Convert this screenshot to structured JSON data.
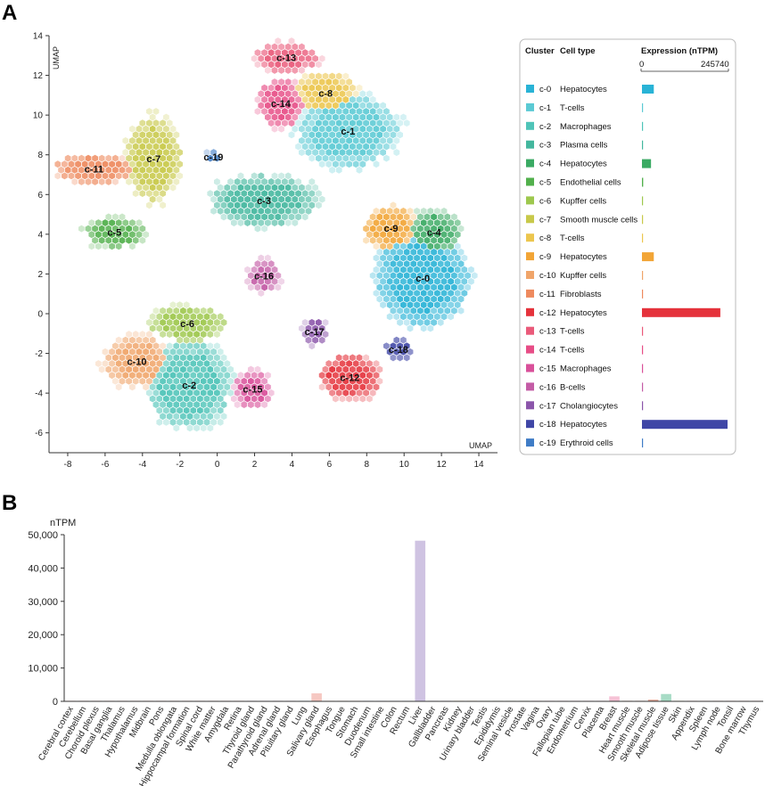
{
  "panels": {
    "a": "A",
    "b": "B"
  },
  "chart_data": [
    {
      "type": "scatter",
      "title": "",
      "xlabel": "UMAP",
      "ylabel": "UMAP",
      "xlim": [
        -9,
        15
      ],
      "ylim": [
        -7,
        14
      ],
      "xticks": [
        -8,
        -6,
        -4,
        -2,
        0,
        2,
        4,
        6,
        8,
        10,
        12,
        14
      ],
      "yticks": [
        -6,
        -4,
        -2,
        0,
        2,
        4,
        6,
        8,
        10,
        12,
        14
      ],
      "clusters": [
        {
          "id": "c-0",
          "cell_type": "Hepatocytes",
          "color": "#29b3d6",
          "center": [
            11.0,
            1.8
          ],
          "extent": [
            2.7,
            2.6
          ],
          "expression": 34000
        },
        {
          "id": "c-1",
          "cell_type": "T-cells",
          "color": "#5bcad4",
          "center": [
            7.0,
            9.2
          ],
          "extent": [
            3.0,
            2.0
          ],
          "expression": 1500
        },
        {
          "id": "c-2",
          "cell_type": "Macrophages",
          "color": "#4fc4b8",
          "center": [
            -1.5,
            -3.6
          ],
          "extent": [
            2.4,
            2.4
          ],
          "expression": 1500
        },
        {
          "id": "c-3",
          "cell_type": "Plasma cells",
          "color": "#43b79e",
          "center": [
            2.5,
            5.7
          ],
          "extent": [
            3.0,
            1.4
          ],
          "expression": 1500
        },
        {
          "id": "c-4",
          "cell_type": "Hepatocytes",
          "color": "#3aaa63",
          "center": [
            11.6,
            4.1
          ],
          "extent": [
            1.6,
            1.2
          ],
          "expression": 26000
        },
        {
          "id": "c-5",
          "cell_type": "Endothelial cells",
          "color": "#52b04c",
          "center": [
            -5.5,
            4.1
          ],
          "extent": [
            1.8,
            0.8
          ],
          "expression": 3500
        },
        {
          "id": "c-6",
          "cell_type": "Kupffer cells",
          "color": "#9ec84e",
          "center": [
            -1.6,
            -0.5
          ],
          "extent": [
            2.2,
            1.0
          ],
          "expression": 2500
        },
        {
          "id": "c-7",
          "cell_type": "Smooth muscle cells",
          "color": "#c8c94a",
          "center": [
            -3.4,
            7.8
          ],
          "extent": [
            1.6,
            2.3
          ],
          "expression": 500
        },
        {
          "id": "c-8",
          "cell_type": "T-cells",
          "color": "#ecc64e",
          "center": [
            5.8,
            11.1
          ],
          "extent": [
            1.8,
            1.1
          ],
          "expression": 800
        },
        {
          "id": "c-9",
          "cell_type": "Hepatocytes",
          "color": "#f2a536",
          "center": [
            9.3,
            4.3
          ],
          "extent": [
            1.6,
            1.1
          ],
          "expression": 34000
        },
        {
          "id": "c-10",
          "cell_type": "Kupffer cells",
          "color": "#f0a56a",
          "center": [
            -4.3,
            -2.4
          ],
          "extent": [
            1.9,
            1.4
          ],
          "expression": 800
        },
        {
          "id": "c-11",
          "cell_type": "Fibroblasts",
          "color": "#ee8a5e",
          "center": [
            -6.6,
            7.3
          ],
          "extent": [
            2.3,
            0.8
          ],
          "expression": 800
        },
        {
          "id": "c-12",
          "cell_type": "Hepatocytes",
          "color": "#e5323b",
          "center": [
            7.1,
            -3.2
          ],
          "extent": [
            1.8,
            1.2
          ],
          "expression": 225000
        },
        {
          "id": "c-13",
          "cell_type": "T-cells",
          "color": "#ea5a7a",
          "center": [
            3.7,
            12.9
          ],
          "extent": [
            1.9,
            0.8
          ],
          "expression": 800
        },
        {
          "id": "c-14",
          "cell_type": "T-cells",
          "color": "#e74d86",
          "center": [
            3.4,
            10.6
          ],
          "extent": [
            1.3,
            1.3
          ],
          "expression": 800
        },
        {
          "id": "c-15",
          "cell_type": "Macrophages",
          "color": "#d9509a",
          "center": [
            1.9,
            -3.8
          ],
          "extent": [
            1.1,
            1.0
          ],
          "expression": 800
        },
        {
          "id": "c-16",
          "cell_type": "B-cells",
          "color": "#c45ca6",
          "center": [
            2.5,
            1.9
          ],
          "extent": [
            0.9,
            0.9
          ],
          "expression": 800
        },
        {
          "id": "c-17",
          "cell_type": "Cholangiocytes",
          "color": "#8b55aa",
          "center": [
            5.2,
            -0.9
          ],
          "extent": [
            0.7,
            0.8
          ],
          "expression": 800
        },
        {
          "id": "c-18",
          "cell_type": "Hepatocytes",
          "color": "#3f46a6",
          "center": [
            9.7,
            -1.8
          ],
          "extent": [
            0.8,
            0.6
          ],
          "expression": 245740
        },
        {
          "id": "c-19",
          "cell_type": "Erythroid cells",
          "color": "#3f7cc6",
          "center": [
            -0.2,
            7.9
          ],
          "extent": [
            0.5,
            0.3
          ],
          "expression": 800
        }
      ],
      "legend": {
        "col_cluster": "Cluster",
        "col_celltype": "Cell type",
        "col_expression": "Expression (nTPM)",
        "expr_min_label": "0",
        "expr_max_label": "245740",
        "expr_max": 245740
      }
    },
    {
      "type": "bar",
      "ylabel": "nTPM",
      "ylim": [
        0,
        50000
      ],
      "yticks": [
        0,
        10000,
        20000,
        30000,
        40000,
        50000
      ],
      "ytick_labels": [
        "0",
        "10,000",
        "20,000",
        "30,000",
        "40,000",
        "50,000"
      ],
      "categories": [
        "Cerebral cortex",
        "Cerebellum",
        "Choroid plexus",
        "Basal ganglia",
        "Thalamus",
        "Hypothalamus",
        "Midbrain",
        "Pons",
        "Medulla oblongata",
        "Hippocampal formation",
        "Spinal cord",
        "White matter",
        "Amygdala",
        "Retina",
        "Thyroid gland",
        "Parathyroid gland",
        "Adrenal gland",
        "Pituitary gland",
        "Lung",
        "Salivary gland",
        "Esophagus",
        "Tongue",
        "Stomach",
        "Duodenum",
        "Small intestine",
        "Colon",
        "Rectum",
        "Liver",
        "Gallbladder",
        "Pancreas",
        "Kidney",
        "Urinary bladder",
        "Testis",
        "Epididymis",
        "Seminal vesicle",
        "Prostate",
        "Vagina",
        "Ovary",
        "Fallopian tube",
        "Endometrium",
        "Cervix",
        "Placenta",
        "Breast",
        "Heart muscle",
        "Smooth muscle",
        "Skeletal muscle",
        "Adipose tissue",
        "Skin",
        "Appendix",
        "Spleen",
        "Lymph node",
        "Tonsil",
        "Bone marrow",
        "Thymus"
      ],
      "values": [
        20,
        20,
        20,
        20,
        20,
        20,
        20,
        20,
        20,
        20,
        20,
        20,
        20,
        20,
        20,
        20,
        20,
        20,
        20,
        2400,
        30,
        30,
        30,
        30,
        30,
        30,
        30,
        48200,
        30,
        30,
        30,
        30,
        30,
        30,
        30,
        30,
        30,
        30,
        30,
        30,
        30,
        30,
        1500,
        60,
        60,
        500,
        2200,
        60,
        40,
        40,
        40,
        40,
        40,
        40
      ],
      "colors": [
        "#f2b9b3",
        "#f2b9b3",
        "#f2b9b3",
        "#f2b9b3",
        "#f2b9b3",
        "#f2b9b3",
        "#f2b9b3",
        "#f2b9b3",
        "#f2b9b3",
        "#f2b9b3",
        "#f2b9b3",
        "#f2b9b3",
        "#f2b9b3",
        "#f2b9b3",
        "#d7c4e4",
        "#d7c4e4",
        "#d7c4e4",
        "#d7c4e4",
        "#b8dce8",
        "#f6c8c2",
        "#f6c8c2",
        "#f6c8c2",
        "#f6c8c2",
        "#c8d6ee",
        "#c8d6ee",
        "#c8d6ee",
        "#c8d6ee",
        "#cfc3e2",
        "#cfc3e2",
        "#cfc3e2",
        "#f4d7a8",
        "#f4d7a8",
        "#c9dfb4",
        "#c9dfb4",
        "#c9dfb4",
        "#c9dfb4",
        "#f6c3d6",
        "#f6c3d6",
        "#f6c3d6",
        "#f6c3d6",
        "#f6c3d6",
        "#f6c3d6",
        "#f6c3d6",
        "#e3a797",
        "#e3a797",
        "#e3a797",
        "#a8dcc6",
        "#e0d5a3",
        "#f3b9b3",
        "#f3b9b3",
        "#f3b9b3",
        "#f3b9b3",
        "#f3b9b3",
        "#f3b9b3"
      ]
    }
  ]
}
